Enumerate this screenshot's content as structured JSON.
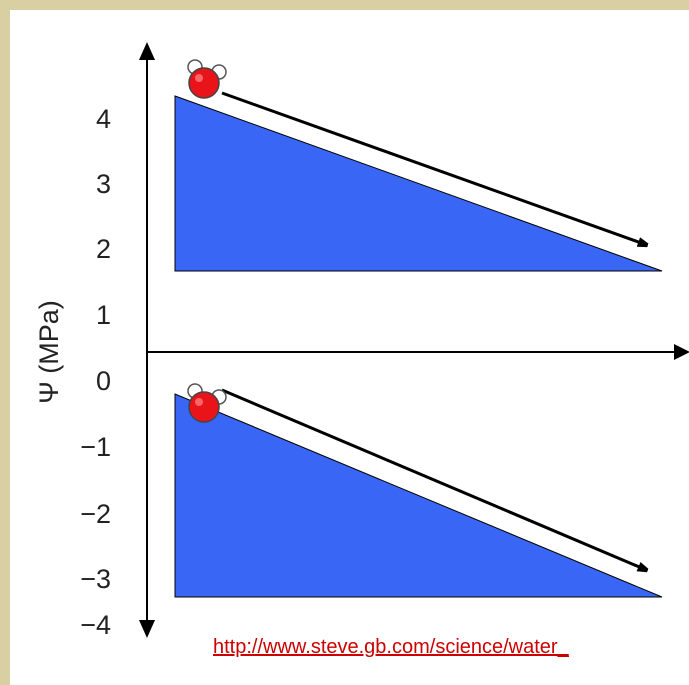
{
  "y_axis": {
    "label": "Ψ (MPa)",
    "ticks": [
      "4",
      "3",
      "2",
      "1",
      "0",
      "−1",
      "−2",
      "−3",
      "−4"
    ]
  },
  "source": {
    "text": "http://www.steve.gb.com/science/water_"
  },
  "colors": {
    "background_border": "#d8cfa3",
    "slope_fill": "#3a66f5",
    "molecule_oxygen": "#e8141a",
    "molecule_hydrogen": "#ffffff",
    "axis": "#000000",
    "link": "#cc0000"
  },
  "icons": {
    "molecule": "water-molecule-icon",
    "arrow": "downhill-arrow-icon"
  }
}
